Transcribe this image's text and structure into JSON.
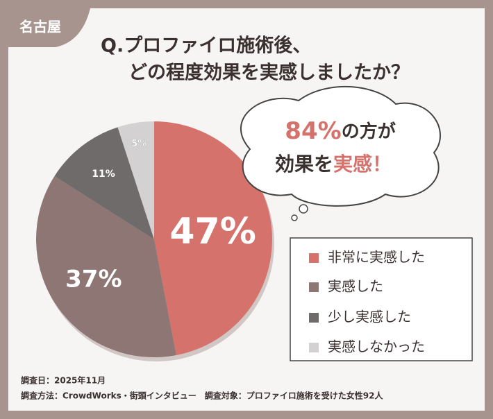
{
  "badge": "名古屋",
  "chart_data": {
    "type": "pie",
    "title": [
      "Q.プロファイロ施術後、",
      "どの程度効果を実感しましたか？"
    ],
    "categories": [
      "非常に実感した",
      "実感した",
      "少し実感した",
      "実感しなかった"
    ],
    "values": [
      47,
      37,
      11,
      5
    ],
    "value_labels": [
      "47%",
      "37%",
      "11%",
      "5%"
    ],
    "colors": [
      "#d6726c",
      "#8d7674",
      "#6f6b6b",
      "#d3d1d1"
    ],
    "annotation": [
      [
        "84%",
        "の方が"
      ],
      [
        "効果を",
        "実感",
        "！"
      ]
    ]
  },
  "notes": [
    "調査日：2025年11月",
    "調査方法：CrowdWorks・街頭インタビュー　調査対象：プロファイロ施術を受けた女性92人"
  ]
}
